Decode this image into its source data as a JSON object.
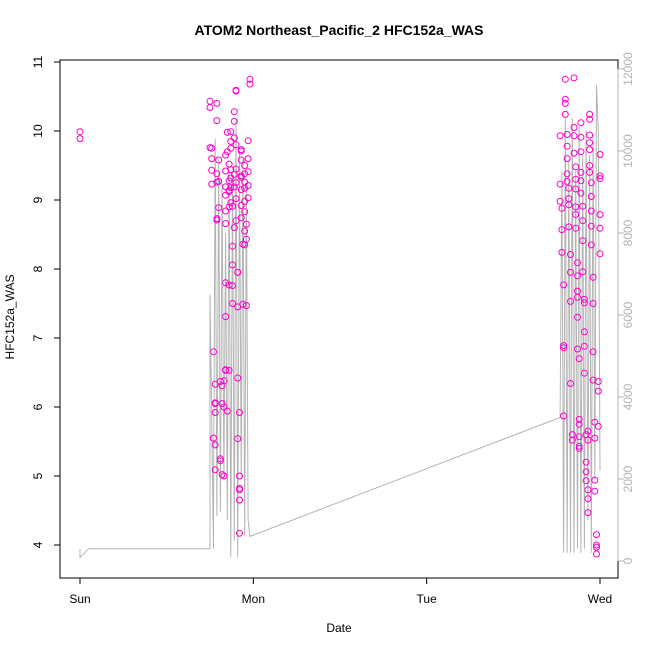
{
  "chart_data": {
    "type": "scatter",
    "title": "ATOM2 Northeast_Pacific_2 HFC152a_WAS",
    "xlabel": "Date",
    "ylabel": "HFC152a_WAS",
    "x_ticks": [
      "Sun",
      "Mon",
      "Tue",
      "Wed"
    ],
    "x_range_days": [
      0,
      3
    ],
    "ylim": [
      4,
      11
    ],
    "y_ticks": [
      4,
      5,
      6,
      7,
      8,
      9,
      10,
      11
    ],
    "y2lim": [
      0,
      12000
    ],
    "y2_ticks": [
      0,
      2000,
      4000,
      6000,
      8000,
      10000,
      12000
    ],
    "colors": {
      "points": "#ff00cc",
      "secondary_line": "#b3b3b3",
      "axis": "#000000"
    },
    "series": [
      {
        "role": "points",
        "points": [
          [
            0.0,
            9.99
          ],
          [
            0.0,
            9.89
          ],
          [
            0.75,
            10.43
          ],
          [
            0.75,
            10.34
          ],
          [
            0.75,
            9.76
          ],
          [
            0.76,
            9.75
          ],
          [
            0.76,
            9.6
          ],
          [
            0.76,
            9.43
          ],
          [
            0.76,
            9.23
          ],
          [
            0.77,
            6.8
          ],
          [
            0.77,
            5.55
          ],
          [
            0.78,
            6.05
          ],
          [
            0.78,
            6.33
          ],
          [
            0.78,
            5.92
          ],
          [
            0.78,
            6.06
          ],
          [
            0.78,
            5.45
          ],
          [
            0.78,
            5.09
          ],
          [
            0.79,
            10.4
          ],
          [
            0.79,
            10.15
          ],
          [
            0.79,
            9.38
          ],
          [
            0.79,
            9.26
          ],
          [
            0.79,
            8.73
          ],
          [
            0.79,
            8.71
          ],
          [
            0.8,
            9.58
          ],
          [
            0.8,
            9.27
          ],
          [
            0.8,
            8.89
          ],
          [
            0.81,
            6.37
          ],
          [
            0.81,
            5.25
          ],
          [
            0.81,
            5.22
          ],
          [
            0.82,
            6.31
          ],
          [
            0.82,
            6.05
          ],
          [
            0.82,
            5.02
          ],
          [
            0.83,
            6.38
          ],
          [
            0.83,
            6.0
          ],
          [
            0.83,
            5.0
          ],
          [
            0.84,
            9.65
          ],
          [
            0.84,
            9.42
          ],
          [
            0.84,
            9.19
          ],
          [
            0.84,
            9.07
          ],
          [
            0.84,
            8.84
          ],
          [
            0.84,
            8.66
          ],
          [
            0.84,
            7.8
          ],
          [
            0.84,
            7.31
          ],
          [
            0.84,
            6.54
          ],
          [
            0.84,
            6.53
          ],
          [
            0.85,
            5.94
          ],
          [
            0.85,
            9.98
          ],
          [
            0.85,
            9.7
          ],
          [
            0.86,
            9.52
          ],
          [
            0.86,
            9.28
          ],
          [
            0.86,
            9.12
          ],
          [
            0.86,
            9.14
          ],
          [
            0.86,
            8.9
          ],
          [
            0.86,
            7.77
          ],
          [
            0.86,
            6.53
          ],
          [
            0.87,
            9.99
          ],
          [
            0.87,
            9.85
          ],
          [
            0.87,
            9.75
          ],
          [
            0.87,
            9.44
          ],
          [
            0.87,
            9.32
          ],
          [
            0.87,
            9.18
          ],
          [
            0.87,
            8.96
          ],
          [
            0.88,
            8.06
          ],
          [
            0.88,
            7.5
          ],
          [
            0.88,
            7.76
          ],
          [
            0.88,
            8.33
          ],
          [
            0.88,
            8.91
          ],
          [
            0.89,
            10.28
          ],
          [
            0.89,
            10.14
          ],
          [
            0.89,
            9.9
          ],
          [
            0.89,
            9.37
          ],
          [
            0.89,
            9.19
          ],
          [
            0.89,
            8.6
          ],
          [
            0.9,
            10.58
          ],
          [
            0.9,
            10.59
          ],
          [
            0.9,
            9.8
          ],
          [
            0.9,
            9.45
          ],
          [
            0.9,
            9.25
          ],
          [
            0.9,
            9.02
          ],
          [
            0.9,
            8.7
          ],
          [
            0.91,
            7.95
          ],
          [
            0.91,
            7.95
          ],
          [
            0.91,
            7.45
          ],
          [
            0.91,
            6.42
          ],
          [
            0.91,
            5.54
          ],
          [
            0.92,
            4.82
          ],
          [
            0.92,
            4.8
          ],
          [
            0.92,
            5.0
          ],
          [
            0.92,
            4.65
          ],
          [
            0.92,
            4.17
          ],
          [
            0.92,
            5.92
          ],
          [
            0.93,
            9.71
          ],
          [
            0.93,
            9.73
          ],
          [
            0.93,
            9.58
          ],
          [
            0.93,
            9.35
          ],
          [
            0.93,
            9.33
          ],
          [
            0.93,
            9.15
          ],
          [
            0.93,
            8.92
          ],
          [
            0.93,
            8.74
          ],
          [
            0.94,
            8.36
          ],
          [
            0.94,
            7.49
          ],
          [
            0.95,
            9.5
          ],
          [
            0.95,
            9.38
          ],
          [
            0.95,
            9.26
          ],
          [
            0.95,
            9.17
          ],
          [
            0.95,
            8.98
          ],
          [
            0.95,
            8.83
          ],
          [
            0.95,
            8.55
          ],
          [
            0.95,
            8.35
          ],
          [
            0.96,
            7.47
          ],
          [
            0.96,
            8.43
          ],
          [
            0.96,
            8.65
          ],
          [
            0.97,
            9.86
          ],
          [
            0.97,
            9.6
          ],
          [
            0.97,
            9.41
          ],
          [
            0.97,
            9.21
          ],
          [
            0.97,
            9.03
          ],
          [
            0.98,
            10.75
          ],
          [
            0.98,
            10.68
          ],
          [
            2.77,
            9.93
          ],
          [
            2.77,
            9.23
          ],
          [
            2.77,
            8.98
          ],
          [
            2.78,
            8.88
          ],
          [
            2.78,
            8.57
          ],
          [
            2.78,
            8.24
          ],
          [
            2.79,
            7.77
          ],
          [
            2.79,
            6.89
          ],
          [
            2.79,
            6.86
          ],
          [
            2.79,
            5.87
          ],
          [
            2.8,
            10.75
          ],
          [
            2.8,
            10.46
          ],
          [
            2.8,
            10.4
          ],
          [
            2.8,
            10.24
          ],
          [
            2.81,
            9.95
          ],
          [
            2.81,
            9.78
          ],
          [
            2.81,
            9.6
          ],
          [
            2.81,
            9.38
          ],
          [
            2.81,
            9.27
          ],
          [
            2.82,
            9.17
          ],
          [
            2.82,
            9.02
          ],
          [
            2.82,
            8.93
          ],
          [
            2.82,
            8.61
          ],
          [
            2.83,
            8.21
          ],
          [
            2.83,
            7.95
          ],
          [
            2.83,
            7.53
          ],
          [
            2.83,
            6.34
          ],
          [
            2.84,
            5.6
          ],
          [
            2.84,
            5.52
          ],
          [
            2.85,
            10.77
          ],
          [
            2.85,
            10.05
          ],
          [
            2.85,
            9.93
          ],
          [
            2.85,
            9.68
          ],
          [
            2.86,
            9.48
          ],
          [
            2.86,
            9.3
          ],
          [
            2.86,
            9.16
          ],
          [
            2.86,
            8.9
          ],
          [
            2.86,
            8.79
          ],
          [
            2.86,
            8.59
          ],
          [
            2.87,
            8.09
          ],
          [
            2.87,
            7.9
          ],
          [
            2.87,
            7.68
          ],
          [
            2.87,
            7.59
          ],
          [
            2.87,
            7.3
          ],
          [
            2.87,
            6.84
          ],
          [
            2.88,
            6.7
          ],
          [
            2.88,
            5.82
          ],
          [
            2.88,
            5.75
          ],
          [
            2.88,
            5.57
          ],
          [
            2.88,
            5.43
          ],
          [
            2.88,
            5.4
          ],
          [
            2.89,
            10.12
          ],
          [
            2.89,
            9.91
          ],
          [
            2.89,
            9.7
          ],
          [
            2.89,
            9.4
          ],
          [
            2.89,
            9.28
          ],
          [
            2.89,
            9.1
          ],
          [
            2.9,
            8.91
          ],
          [
            2.9,
            8.7
          ],
          [
            2.9,
            8.41
          ],
          [
            2.9,
            7.96
          ],
          [
            2.91,
            7.56
          ],
          [
            2.91,
            7.51
          ],
          [
            2.91,
            7.09
          ],
          [
            2.91,
            6.88
          ],
          [
            2.91,
            6.49
          ],
          [
            2.92,
            5.6
          ],
          [
            2.92,
            5.2
          ],
          [
            2.92,
            5.06
          ],
          [
            2.92,
            4.93
          ],
          [
            2.93,
            4.67
          ],
          [
            2.93,
            4.47
          ],
          [
            2.93,
            4.8
          ],
          [
            2.93,
            5.52
          ],
          [
            2.93,
            5.65
          ],
          [
            2.94,
            10.24
          ],
          [
            2.94,
            10.17
          ],
          [
            2.94,
            9.94
          ],
          [
            2.94,
            9.83
          ],
          [
            2.94,
            9.73
          ],
          [
            2.94,
            9.5
          ],
          [
            2.94,
            9.4
          ],
          [
            2.95,
            9.25
          ],
          [
            2.95,
            9.05
          ],
          [
            2.95,
            8.84
          ],
          [
            2.95,
            8.62
          ],
          [
            2.95,
            8.35
          ],
          [
            2.96,
            7.88
          ],
          [
            2.96,
            7.5
          ],
          [
            2.96,
            6.8
          ],
          [
            2.96,
            6.39
          ],
          [
            2.97,
            5.78
          ],
          [
            2.97,
            5.55
          ],
          [
            2.97,
            4.94
          ],
          [
            2.97,
            4.78
          ],
          [
            2.98,
            4.15
          ],
          [
            2.98,
            4.0
          ],
          [
            2.98,
            3.87
          ],
          [
            2.98,
            3.97
          ],
          [
            2.99,
            5.72
          ],
          [
            2.99,
            6.23
          ],
          [
            2.99,
            6.37
          ],
          [
            3.0,
            9.35
          ],
          [
            3.0,
            9.31
          ],
          [
            3.0,
            8.79
          ],
          [
            3.0,
            8.59
          ],
          [
            3.0,
            8.22
          ],
          [
            3.0,
            9.66
          ]
        ]
      },
      {
        "role": "secondary_line",
        "points": [
          [
            0.0,
            200
          ],
          [
            0.0,
            300
          ],
          [
            0.0,
            80
          ],
          [
            0.05,
            300
          ],
          [
            0.75,
            300
          ],
          [
            0.75,
            6500
          ],
          [
            0.77,
            300
          ],
          [
            0.77,
            1200
          ],
          [
            0.78,
            10300
          ],
          [
            0.79,
            1100
          ],
          [
            0.8,
            9800
          ],
          [
            0.81,
            1200
          ],
          [
            0.82,
            9200
          ],
          [
            0.83,
            2000
          ],
          [
            0.84,
            8000
          ],
          [
            0.85,
            1000
          ],
          [
            0.86,
            9500
          ],
          [
            0.87,
            100
          ],
          [
            0.88,
            9500
          ],
          [
            0.89,
            500
          ],
          [
            0.9,
            10800
          ],
          [
            0.91,
            100
          ],
          [
            0.92,
            10000
          ],
          [
            0.93,
            2000
          ],
          [
            0.94,
            9800
          ],
          [
            0.95,
            600
          ],
          [
            0.96,
            9200
          ],
          [
            0.97,
            1000
          ],
          [
            0.98,
            600
          ],
          [
            2.77,
            3500
          ],
          [
            2.78,
            9500
          ],
          [
            2.79,
            200
          ],
          [
            2.8,
            10800
          ],
          [
            2.81,
            200
          ],
          [
            2.82,
            9800
          ],
          [
            2.83,
            200
          ],
          [
            2.84,
            10800
          ],
          [
            2.85,
            200
          ],
          [
            2.86,
            9500
          ],
          [
            2.87,
            300
          ],
          [
            2.88,
            10600
          ],
          [
            2.89,
            200
          ],
          [
            2.9,
            9900
          ],
          [
            2.91,
            300
          ],
          [
            2.92,
            10500
          ],
          [
            2.93,
            1000
          ],
          [
            2.94,
            9900
          ],
          [
            2.95,
            200
          ],
          [
            2.96,
            10400
          ],
          [
            2.97,
            2000
          ],
          [
            2.98,
            11600
          ],
          [
            2.99,
            10500
          ],
          [
            3.0,
            2200
          ]
        ]
      }
    ]
  }
}
